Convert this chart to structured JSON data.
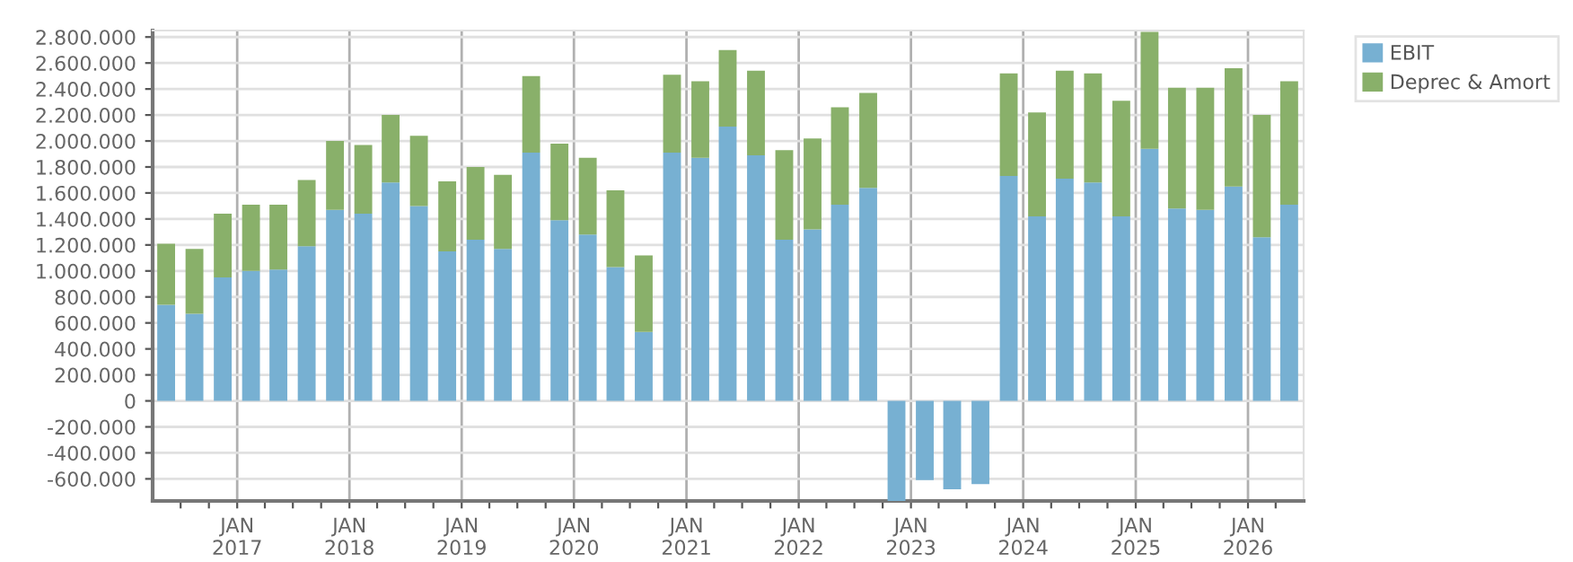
{
  "chart_data": {
    "type": "bar",
    "stacked": true,
    "x": [
      "2016-05-15",
      "2016-08-15",
      "2016-11-15",
      "2017-02-15",
      "2017-05-15",
      "2017-08-15",
      "2017-11-15",
      "2018-02-15",
      "2018-05-15",
      "2018-08-15",
      "2018-11-15",
      "2019-02-15",
      "2019-05-15",
      "2019-08-15",
      "2019-11-15",
      "2020-02-15",
      "2020-05-15",
      "2020-08-15",
      "2020-11-15",
      "2021-02-15",
      "2021-05-15",
      "2021-08-15",
      "2021-11-15",
      "2022-02-15",
      "2022-05-15",
      "2022-08-15",
      "2022-11-15",
      "2023-02-15",
      "2023-05-15",
      "2023-08-15",
      "2023-11-15",
      "2024-02-15",
      "2024-05-15",
      "2024-08-15",
      "2024-11-15",
      "2025-02-15",
      "2025-05-15",
      "2025-08-15",
      "2025-11-15",
      "2026-02-15",
      "2026-05-15"
    ],
    "series": [
      {
        "name": "EBIT",
        "color": "#77b0d2",
        "values": [
          740000,
          670000,
          950000,
          1000000,
          1010000,
          1190000,
          1470000,
          1440000,
          1680000,
          1500000,
          1150000,
          1240000,
          1170000,
          1910000,
          1390000,
          1280000,
          1030000,
          530000,
          1910000,
          1870000,
          2110000,
          1890000,
          1240000,
          1320000,
          1510000,
          1640000,
          -770000,
          -610000,
          -680000,
          -640000,
          1730000,
          1420000,
          1710000,
          1680000,
          1420000,
          1940000,
          1480000,
          1470000,
          1650000,
          1260000,
          1510000
        ]
      },
      {
        "name": "Deprec & Amort",
        "color": "#89b06a",
        "values": [
          470000,
          500000,
          490000,
          510000,
          500000,
          510000,
          530000,
          530000,
          520000,
          540000,
          540000,
          560000,
          570000,
          590000,
          590000,
          590000,
          590000,
          590000,
          600000,
          590000,
          590000,
          650000,
          690000,
          700000,
          750000,
          730000,
          0,
          0,
          0,
          0,
          790000,
          800000,
          830000,
          840000,
          890000,
          900000,
          930000,
          940000,
          910000,
          940000,
          950000
        ]
      }
    ],
    "xlim": [
      "2016-04-01",
      "2026-07-01"
    ],
    "xticks": [
      {
        "value": "2016-07-01",
        "label": null
      },
      {
        "value": "2016-10-01",
        "label": null
      },
      {
        "value": "2017-01-01",
        "label": "JAN\n2017"
      },
      {
        "value": "2017-04-01",
        "label": null
      },
      {
        "value": "2017-07-01",
        "label": null
      },
      {
        "value": "2017-10-01",
        "label": null
      },
      {
        "value": "2018-01-01",
        "label": "JAN\n2018"
      },
      {
        "value": "2018-04-01",
        "label": null
      },
      {
        "value": "2018-07-01",
        "label": null
      },
      {
        "value": "2018-10-01",
        "label": null
      },
      {
        "value": "2019-01-01",
        "label": "JAN\n2019"
      },
      {
        "value": "2019-04-01",
        "label": null
      },
      {
        "value": "2019-07-01",
        "label": null
      },
      {
        "value": "2019-10-01",
        "label": null
      },
      {
        "value": "2020-01-01",
        "label": "JAN\n2020"
      },
      {
        "value": "2020-04-01",
        "label": null
      },
      {
        "value": "2020-07-01",
        "label": null
      },
      {
        "value": "2020-10-01",
        "label": null
      },
      {
        "value": "2021-01-01",
        "label": "JAN\n2021"
      },
      {
        "value": "2021-04-01",
        "label": null
      },
      {
        "value": "2021-07-01",
        "label": null
      },
      {
        "value": "2021-10-01",
        "label": null
      },
      {
        "value": "2022-01-01",
        "label": "JAN\n2022"
      },
      {
        "value": "2022-04-01",
        "label": null
      },
      {
        "value": "2022-07-01",
        "label": null
      },
      {
        "value": "2022-10-01",
        "label": null
      },
      {
        "value": "2023-01-01",
        "label": "JAN\n2023"
      },
      {
        "value": "2023-04-01",
        "label": null
      },
      {
        "value": "2023-07-01",
        "label": null
      },
      {
        "value": "2023-10-01",
        "label": null
      },
      {
        "value": "2024-01-01",
        "label": "JAN\n2024"
      },
      {
        "value": "2024-04-01",
        "label": null
      },
      {
        "value": "2024-07-01",
        "label": null
      },
      {
        "value": "2024-10-01",
        "label": null
      },
      {
        "value": "2025-01-01",
        "label": "JAN\n2025"
      },
      {
        "value": "2025-04-01",
        "label": null
      },
      {
        "value": "2025-07-01",
        "label": null
      },
      {
        "value": "2025-10-01",
        "label": null
      },
      {
        "value": "2026-01-01",
        "label": "JAN\n2026"
      },
      {
        "value": "2026-04-01",
        "label": null
      }
    ],
    "ylim": [
      -770000,
      2850000
    ],
    "yticks": [
      {
        "value": -600000,
        "label": "-600.000"
      },
      {
        "value": -400000,
        "label": "-400.000"
      },
      {
        "value": -200000,
        "label": "-200.000"
      },
      0,
      {
        "value": 200000,
        "label": "200.000"
      },
      {
        "value": 400000,
        "label": "400.000"
      },
      {
        "value": 600000,
        "label": "600.000"
      },
      {
        "value": 800000,
        "label": "800.000"
      },
      {
        "value": 1000000,
        "label": "1.000.000"
      },
      {
        "value": 1200000,
        "label": "1.200.000"
      },
      {
        "value": 1400000,
        "label": "1.400.000"
      },
      {
        "value": 1600000,
        "label": "1.600.000"
      },
      {
        "value": 1800000,
        "label": "1.800.000"
      },
      {
        "value": 2000000,
        "label": "2.000.000"
      },
      {
        "value": 2200000,
        "label": "2.200.000"
      },
      {
        "value": 2400000,
        "label": "2.400.000"
      },
      {
        "value": 2600000,
        "label": "2.600.000"
      },
      {
        "value": 2800000,
        "label": "2.800.000"
      }
    ],
    "grid": true,
    "legend": "top right"
  }
}
